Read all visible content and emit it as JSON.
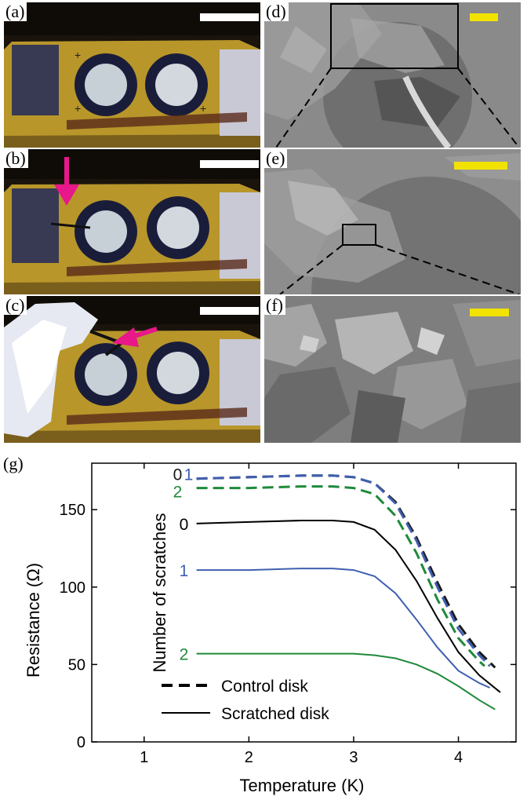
{
  "panels": {
    "a": {
      "label": "(a)"
    },
    "b": {
      "label": "(b)"
    },
    "c": {
      "label": "(c)"
    },
    "d": {
      "label": "(d)"
    },
    "e": {
      "label": "(e)"
    },
    "f": {
      "label": "(f)"
    },
    "g": {
      "label": "(g)"
    }
  },
  "colors": {
    "optical_scalebar": "#ffffff",
    "sem_scalebar": "#f2e200",
    "arrow": "#e8178a",
    "gold": "#b8962a",
    "ring": "#1a1d3a",
    "sem_bg": "#8a8a8a"
  },
  "chart_data": {
    "type": "line",
    "xlabel": "Temperature (K)",
    "ylabel": "Resistance (Ω)",
    "ylabel2": "Number of scratches",
    "xlim": [
      0.5,
      4.55
    ],
    "ylim": [
      0,
      180
    ],
    "xticks": [
      "1",
      "2",
      "3",
      "4"
    ],
    "yticks": [
      "0",
      "50",
      "100",
      "150"
    ],
    "legend": {
      "dashed": "Control disk",
      "solid": "Scratched disk",
      "placement": "bottom-center"
    },
    "series": [
      {
        "label": "0",
        "style": "dashed",
        "color": "#1a1a1a",
        "x": [
          1.5,
          2.0,
          2.5,
          2.8,
          3.0,
          3.2,
          3.4,
          3.6,
          3.8,
          4.0,
          4.2,
          4.35
        ],
        "y": [
          170,
          171,
          172,
          172,
          171,
          167,
          155,
          132,
          103,
          76,
          58,
          48
        ]
      },
      {
        "label": "1",
        "style": "dashed",
        "color": "#3f5fb0",
        "x": [
          1.5,
          2.0,
          2.5,
          2.8,
          3.0,
          3.2,
          3.4,
          3.6,
          3.8,
          4.0,
          4.2,
          4.3
        ],
        "y": [
          170,
          171,
          172,
          172,
          171,
          167,
          154,
          130,
          100,
          73,
          56,
          49
        ]
      },
      {
        "label": "2",
        "style": "dashed",
        "color": "#1f8a3a",
        "x": [
          1.5,
          2.0,
          2.5,
          2.8,
          3.0,
          3.2,
          3.4,
          3.6,
          3.8,
          4.0,
          4.2,
          4.25
        ],
        "y": [
          164,
          164,
          165,
          165,
          164,
          160,
          146,
          122,
          92,
          67,
          52,
          49
        ]
      },
      {
        "label": "0",
        "style": "solid",
        "color": "#000000",
        "x": [
          1.5,
          2.0,
          2.5,
          2.8,
          3.0,
          3.2,
          3.4,
          3.6,
          3.8,
          4.0,
          4.2,
          4.4
        ],
        "y": [
          141,
          142,
          143,
          143,
          142,
          137,
          124,
          104,
          80,
          58,
          43,
          32
        ]
      },
      {
        "label": "1",
        "style": "solid",
        "color": "#3f5fb0",
        "x": [
          1.5,
          2.0,
          2.5,
          2.8,
          3.0,
          3.2,
          3.4,
          3.6,
          3.8,
          4.0,
          4.2,
          4.3
        ],
        "y": [
          111,
          111,
          112,
          112,
          111,
          107,
          96,
          79,
          61,
          46,
          38,
          35
        ]
      },
      {
        "label": "2",
        "style": "solid",
        "color": "#1f8a3a",
        "x": [
          1.5,
          2.0,
          2.5,
          3.0,
          3.2,
          3.4,
          3.6,
          3.8,
          4.0,
          4.2,
          4.35
        ],
        "y": [
          57,
          57,
          57,
          57,
          56,
          54,
          50,
          44,
          36,
          27,
          21
        ]
      }
    ]
  }
}
